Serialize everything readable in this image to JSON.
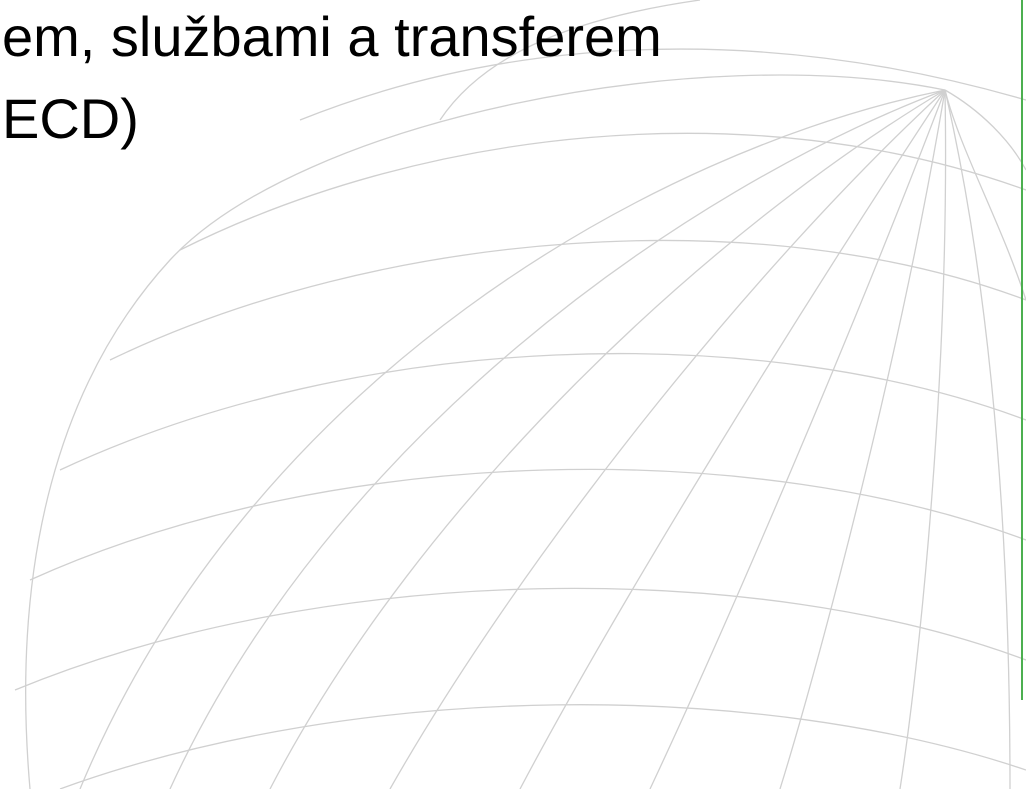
{
  "title": {
    "lines": [
      "em, službami a transferem",
      "ECD)"
    ]
  }
}
